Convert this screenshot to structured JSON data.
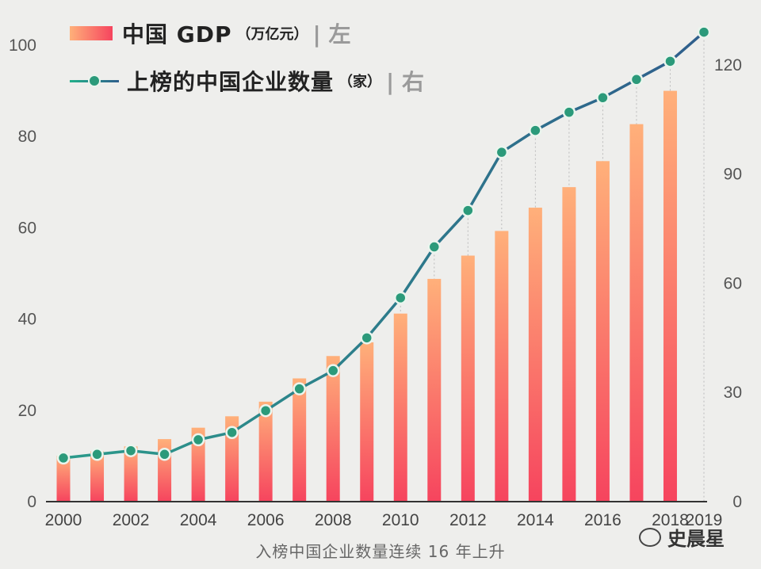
{
  "legend": {
    "gdp": {
      "name": "中国 GDP",
      "unit": "（万亿元）",
      "side": "| 左"
    },
    "count": {
      "name": "上榜的中国企业数量",
      "unit": "（家）",
      "side": "| 右"
    }
  },
  "caption": "入榜中国企业数量连续 16 年上升",
  "watermark": "史晨星",
  "colors": {
    "bar_top": "#ffb07a",
    "bar_bottom": "#f6445e",
    "line": "#2f7f86",
    "marker": "#2b9a7a"
  },
  "chart_data": {
    "type": "bar",
    "x": [
      2000,
      2001,
      2002,
      2003,
      2004,
      2005,
      2006,
      2007,
      2008,
      2009,
      2010,
      2011,
      2012,
      2013,
      2014,
      2015,
      2016,
      2017,
      2018,
      2019
    ],
    "x_tick_labels": [
      "2000",
      "2002",
      "2004",
      "2006",
      "2008",
      "2010",
      "2012",
      "2014",
      "2016",
      "2018",
      "2019"
    ],
    "series": [
      {
        "name": "中国 GDP（万亿元）",
        "type": "bar",
        "axis": "left",
        "values": [
          10.0,
          11.0,
          12.1,
          13.7,
          16.2,
          18.7,
          21.9,
          27.0,
          31.9,
          34.9,
          41.2,
          48.8,
          53.9,
          59.3,
          64.4,
          68.9,
          74.6,
          82.7,
          90.0,
          null
        ]
      },
      {
        "name": "上榜的中国企业数量（家）",
        "type": "line",
        "axis": "right",
        "values": [
          12,
          13,
          14,
          13,
          17,
          19,
          25,
          31,
          36,
          45,
          56,
          70,
          80,
          96,
          102,
          107,
          111,
          116,
          121,
          129
        ]
      }
    ],
    "y_left": {
      "min": 0,
      "max": 100,
      "ticks": [
        0,
        20,
        40,
        60,
        80,
        100
      ]
    },
    "y_right": {
      "min": 0,
      "max": 130,
      "ticks": [
        0,
        30,
        60,
        90,
        120
      ]
    },
    "grid": false
  }
}
